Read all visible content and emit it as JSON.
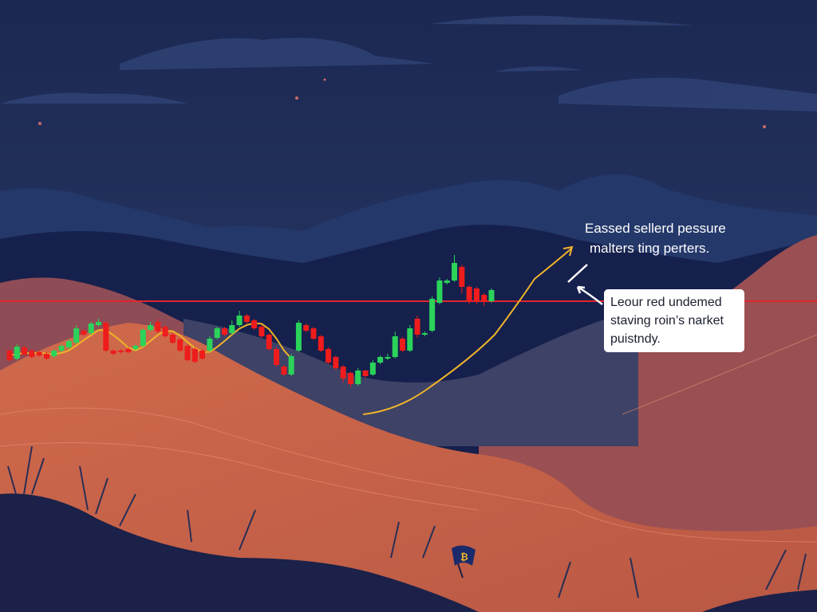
{
  "headline": {
    "line1": "Eassed sellerd pessure",
    "line2": "malters ting perters."
  },
  "callout": {
    "line1": "Leour red undemed",
    "line2": "staving roin’s narket",
    "line3": "puistndy."
  },
  "flag_icon": "bitcoin-flag-icon",
  "colors": {
    "up": "#2bd35a",
    "down": "#ee1c1c",
    "resistance": "#e0262a",
    "moving_average": "#f0b429",
    "sky": "#1c2a55",
    "land": "#c8614a"
  },
  "candles": [
    [
      60,
      48,
      62,
      46
    ],
    [
      50,
      65,
      68,
      48
    ],
    [
      64,
      55,
      66,
      53
    ],
    [
      60,
      52,
      62,
      50
    ],
    [
      58,
      54,
      60,
      52
    ],
    [
      56,
      50,
      58,
      48
    ],
    [
      53,
      60,
      62,
      51
    ],
    [
      60,
      66,
      68,
      58
    ],
    [
      64,
      72,
      74,
      62
    ],
    [
      70,
      88,
      92,
      68
    ],
    [
      85,
      80,
      87,
      78
    ],
    [
      82,
      94,
      96,
      80
    ],
    [
      92,
      96,
      100,
      90
    ],
    [
      95,
      60,
      97,
      58
    ],
    [
      60,
      56,
      62,
      54
    ],
    [
      60,
      58,
      62,
      56
    ],
    [
      62,
      58,
      64,
      56
    ],
    [
      62,
      66,
      68,
      60
    ],
    [
      66,
      86,
      88,
      64
    ],
    [
      86,
      92,
      96,
      84
    ],
    [
      96,
      84,
      100,
      82
    ],
    [
      90,
      78,
      92,
      76
    ],
    [
      80,
      70,
      82,
      68
    ],
    [
      74,
      60,
      76,
      58
    ],
    [
      66,
      48,
      68,
      46
    ],
    [
      62,
      46,
      64,
      44
    ],
    [
      60,
      50,
      62,
      48
    ],
    [
      60,
      75,
      78,
      58
    ],
    [
      76,
      88,
      90,
      74
    ],
    [
      88,
      80,
      90,
      78
    ],
    [
      82,
      92,
      98,
      80
    ],
    [
      92,
      104,
      110,
      90
    ],
    [
      104,
      96,
      106,
      94
    ],
    [
      98,
      88,
      100,
      86
    ],
    [
      90,
      78,
      92,
      76
    ],
    [
      80,
      62,
      82,
      60
    ],
    [
      62,
      42,
      64,
      40
    ],
    [
      40,
      30,
      42,
      28
    ],
    [
      30,
      53,
      56,
      28
    ],
    [
      60,
      95,
      98,
      58
    ],
    [
      92,
      85,
      94,
      83
    ],
    [
      88,
      75,
      90,
      73
    ],
    [
      78,
      60,
      80,
      58
    ],
    [
      62,
      45,
      64,
      43
    ],
    [
      52,
      38,
      54,
      36
    ],
    [
      40,
      25,
      42,
      20
    ],
    [
      32,
      18,
      34,
      14
    ],
    [
      18,
      35,
      38,
      16
    ],
    [
      35,
      28,
      36,
      26
    ],
    [
      30,
      45,
      48,
      28
    ],
    [
      45,
      52,
      54,
      43
    ],
    [
      50,
      52,
      56,
      48
    ],
    [
      52,
      78,
      84,
      50
    ],
    [
      75,
      60,
      77,
      58
    ],
    [
      60,
      88,
      92,
      58
    ],
    [
      100,
      80,
      104,
      76
    ],
    [
      80,
      82,
      84,
      78
    ],
    [
      85,
      125,
      128,
      83
    ],
    [
      120,
      148,
      152,
      118
    ],
    [
      145,
      148,
      150,
      143
    ],
    [
      148,
      170,
      180,
      146
    ],
    [
      165,
      140,
      168,
      132
    ],
    [
      140,
      122,
      142,
      118
    ],
    [
      138,
      122,
      140,
      118
    ],
    [
      130,
      122,
      132,
      116
    ],
    [
      122,
      136,
      138,
      120
    ]
  ]
}
